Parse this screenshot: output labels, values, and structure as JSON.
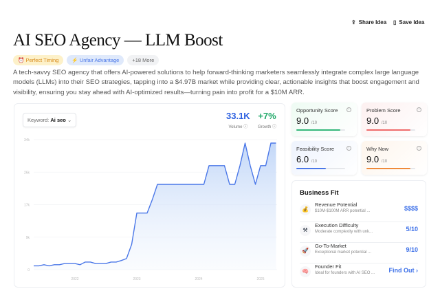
{
  "header": {
    "share_label": "Share Idea",
    "save_label": "Save Idea",
    "share_icon": "share-icon",
    "save_icon": "bookmark-icon"
  },
  "title": "AI SEO Agency — LLM Boost",
  "tags": [
    {
      "icon": "⏰",
      "label": "Perfect Timing"
    },
    {
      "icon": "⚡",
      "label": "Unfair Advantage"
    },
    {
      "label": "+18 More"
    }
  ],
  "description": "A tech-savvy SEO agency that offers AI-powered solutions to help forward-thinking marketers seamlessly integrate complex large language models (LLMs) into their SEO strategies, tapping into a $4.97B market while providing clear, actionable insights that boost engagement and visibility, ensuring you stay ahead with AI-optimized results—turning pain into profit for a $10M ARR.",
  "trend": {
    "keyword_label": "Keyword:",
    "keyword": "Ai seo",
    "volume": "33.1K",
    "volume_label": "Volume",
    "growth": "+7%",
    "growth_label": "Growth"
  },
  "chart_data": {
    "type": "area",
    "y_ticks": [
      "0",
      "9k",
      "17k",
      "26k",
      "34k"
    ],
    "x_ticks": [
      "2022",
      "2023",
      "2024",
      "2025"
    ],
    "ylim": [
      0,
      34000
    ],
    "grid": true,
    "color": "#4a77e8",
    "x": [
      "2021-05",
      "2021-06",
      "2021-07",
      "2021-08",
      "2021-09",
      "2021-10",
      "2021-11",
      "2021-12",
      "2022-01",
      "2022-02",
      "2022-03",
      "2022-04",
      "2022-05",
      "2022-06",
      "2022-07",
      "2022-08",
      "2022-09",
      "2022-10",
      "2022-11",
      "2022-12",
      "2023-01",
      "2023-02",
      "2023-03",
      "2023-04",
      "2023-05",
      "2023-06",
      "2023-07",
      "2023-08",
      "2023-09",
      "2023-10",
      "2023-11",
      "2023-12",
      "2024-01",
      "2024-02",
      "2024-03",
      "2024-04",
      "2024-05",
      "2024-06",
      "2024-07",
      "2024-08",
      "2024-09",
      "2024-10",
      "2024-11",
      "2024-12",
      "2025-01",
      "2025-02",
      "2025-03",
      "2025-04"
    ],
    "values": [
      1000,
      1000,
      1300,
      1000,
      1300,
      1300,
      1600,
      1600,
      1600,
      1300,
      2000,
      2000,
      1600,
      1600,
      1600,
      2000,
      2000,
      2400,
      2900,
      6600,
      14800,
      14800,
      14800,
      18300,
      22300,
      22300,
      22300,
      22300,
      22300,
      22300,
      22300,
      22300,
      22300,
      22300,
      27200,
      27200,
      27200,
      27200,
      22300,
      22300,
      27200,
      33100,
      27200,
      22300,
      27200,
      27200,
      33100,
      33100
    ]
  },
  "scores": [
    {
      "title": "Opportunity Score",
      "value": "9.0",
      "max": "/10",
      "fraction": 0.9,
      "color": "#34b77a",
      "bg": "#eefbf3"
    },
    {
      "title": "Problem Score",
      "value": "9.0",
      "max": "/10",
      "fraction": 0.9,
      "color": "#ef6b6b",
      "bg": "#fdf0f0"
    },
    {
      "title": "Feasibility Score",
      "value": "6.0",
      "max": "/10",
      "fraction": 0.6,
      "color": "#4a77e8",
      "bg": "#eef3fd"
    },
    {
      "title": "Why Now",
      "value": "9.0",
      "max": "/10",
      "fraction": 0.9,
      "color": "#ef8a3a",
      "bg": "#fef5ec"
    }
  ],
  "business_fit": {
    "title": "Business Fit",
    "rows": [
      {
        "icon": "💰",
        "title": "Revenue Potential",
        "sub": "$10M-$100M ARR potential ...",
        "value": "$$$$"
      },
      {
        "icon": "⚒",
        "title": "Execution Difficulty",
        "sub": "Moderate complexity with unk...",
        "value": "5/10"
      },
      {
        "icon": "🚀",
        "title": "Go-To-Market",
        "sub": "Exceptional market potential ...",
        "value": "9/10"
      },
      {
        "icon": "🧠",
        "title": "Founder Fit",
        "sub": "Ideal for founders with AI SEO ...",
        "value": "Find Out ›"
      }
    ]
  }
}
